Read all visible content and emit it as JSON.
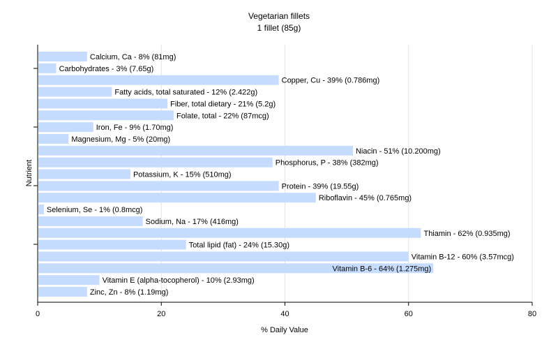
{
  "chart_data": {
    "type": "bar",
    "orientation": "horizontal",
    "title": "Vegetarian fillets",
    "subtitle": "1 fillet (85g)",
    "xlabel": "% Daily Value",
    "ylabel": "Nutrient",
    "xlim": [
      0,
      80
    ],
    "xticks": [
      0,
      20,
      40,
      60,
      80
    ],
    "grid": true,
    "bar_color": "#c6dcff",
    "categories": [
      "Calcium, Ca",
      "Carbohydrates",
      "Copper, Cu",
      "Fatty acids, total saturated",
      "Fiber, total dietary",
      "Folate, total",
      "Iron, Fe",
      "Magnesium, Mg",
      "Niacin",
      "Phosphorus, P",
      "Potassium, K",
      "Protein",
      "Riboflavin",
      "Selenium, Se",
      "Sodium, Na",
      "Thiamin",
      "Total lipid (fat)",
      "Vitamin B-12",
      "Vitamin B-6",
      "Vitamin E (alpha-tocopherol)",
      "Zinc, Zn"
    ],
    "values": [
      8,
      3,
      39,
      12,
      21,
      22,
      9,
      5,
      51,
      38,
      15,
      39,
      45,
      1,
      17,
      62,
      24,
      60,
      64,
      10,
      8
    ],
    "labels": [
      "Calcium, Ca - 8% (81mg)",
      "Carbohydrates - 3% (7.65g)",
      "Copper, Cu - 39% (0.786mg)",
      "Fatty acids, total saturated - 12% (2.422g)",
      "Fiber, total dietary - 21% (5.2g)",
      "Folate, total - 22% (87mcg)",
      "Iron, Fe - 9% (1.70mg)",
      "Magnesium, Mg - 5% (20mg)",
      "Niacin - 51% (10.200mg)",
      "Phosphorus, P - 38% (382mg)",
      "Potassium, K - 15% (510mg)",
      "Protein - 39% (19.55g)",
      "Riboflavin - 45% (0.765mg)",
      "Selenium, Se - 1% (0.8mcg)",
      "Sodium, Na - 17% (416mg)",
      "Thiamin - 62% (0.935mg)",
      "Total lipid (fat) - 24% (15.30g)",
      "Vitamin B-12 - 60% (3.57mcg)",
      "Vitamin B-6 - 64% (1.275mg)",
      "Vitamin E (alpha-tocopherol) - 10% (2.93mg)",
      "Zinc, Zn - 8% (1.19mg)"
    ]
  }
}
